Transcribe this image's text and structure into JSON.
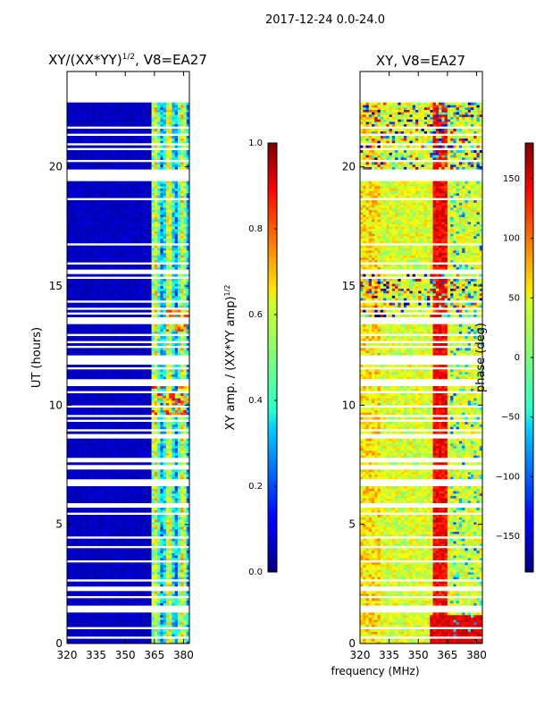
{
  "suptitle": "2017-12-24 0.0-24.0",
  "shared_xlabel": "frequency (MHz)",
  "chart_data": [
    {
      "type": "heatmap",
      "title_main": "XY/(XX*YY)",
      "title_sup": "1/2",
      "title_suffix": ", V8=EA27",
      "xlabel": "frequency (MHz)",
      "ylabel": "UT (hours)",
      "xlim": [
        320,
        383
      ],
      "ylim": [
        0,
        24
      ],
      "xticks": [
        "320",
        "335",
        "350",
        "365",
        "380"
      ],
      "xtick_values": [
        320,
        335,
        350,
        365,
        380
      ],
      "yticks": [
        "0",
        "5",
        "10",
        "15",
        "20"
      ],
      "ytick_values": [
        0,
        5,
        10,
        15,
        20
      ],
      "colormap": "jet",
      "data_range_hours": [
        0,
        22.7
      ],
      "colorbar": {
        "label_main": "XY amp. / (XX*YY amp)",
        "label_sup": "1/2",
        "range": [
          0.0,
          1.0
        ],
        "ticks": [
          "0.0",
          "0.2",
          "0.4",
          "0.6",
          "0.8",
          "1.0"
        ],
        "tick_values": [
          0.0,
          0.2,
          0.4,
          0.6,
          0.8,
          1.0
        ]
      }
    },
    {
      "type": "heatmap",
      "title": "XY, V8=EA27",
      "xlabel": "frequency (MHz)",
      "xlim": [
        320,
        383
      ],
      "ylim": [
        0,
        24
      ],
      "xticks": [
        "320",
        "335",
        "350",
        "365",
        "380"
      ],
      "xtick_values": [
        320,
        335,
        350,
        365,
        380
      ],
      "yticks": [
        "0",
        "5",
        "10",
        "15",
        "20"
      ],
      "ytick_values": [
        0,
        5,
        10,
        15,
        20
      ],
      "colormap": "jet",
      "data_range_hours": [
        0,
        22.7
      ],
      "colorbar": {
        "label": "phase (deg)",
        "range": [
          -180,
          180
        ],
        "ticks": [
          "−150",
          "−100",
          "−50",
          "0",
          "50",
          "100",
          "150"
        ],
        "tick_values": [
          -150,
          -100,
          -50,
          0,
          50,
          100,
          150
        ]
      }
    }
  ]
}
